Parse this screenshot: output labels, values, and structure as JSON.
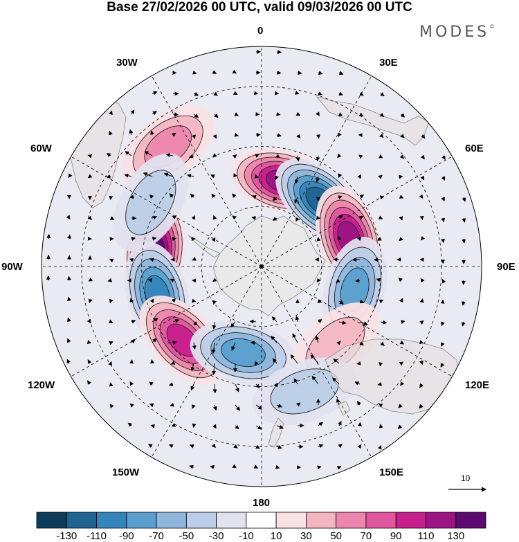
{
  "title": "Base 27/02/2026 00 UTC, valid 09/03/2026 00 UTC",
  "brand": "MODES",
  "brand_mark": "©",
  "lon_labels": {
    "l0": "0",
    "l30e": "30E",
    "l60e": "60E",
    "l90e": "90E",
    "l120e": "120E",
    "l150e": "150E",
    "l180": "180",
    "l150w": "150W",
    "l120w": "120W",
    "l90w": "90W",
    "l60w": "60W",
    "l30w": "30W"
  },
  "vector_scale": "10",
  "colorbar": {
    "labels": [
      "-130",
      "-110",
      "-90",
      "-70",
      "-50",
      "-30",
      "-10",
      "10",
      "30",
      "50",
      "70",
      "90",
      "110",
      "130"
    ],
    "colors": [
      "#0d3c5c",
      "#1f6391",
      "#3585bd",
      "#5a9fcd",
      "#8fb7dc",
      "#bccde7",
      "#e2e2ef",
      "#ffffff",
      "#fae1e4",
      "#f4b5c3",
      "#ec86ac",
      "#e0559e",
      "#c71f8c",
      "#9c1483",
      "#5c0a6f"
    ]
  },
  "anomalies": [
    {
      "sign": "pos",
      "level": 6,
      "lon": -82,
      "colat": 27
    },
    {
      "sign": "neg",
      "level": 4,
      "lon": -105,
      "colat": 27
    },
    {
      "sign": "pos",
      "level": 4,
      "lon": -133,
      "colat": 27
    },
    {
      "sign": "neg",
      "level": 3,
      "lon": -168,
      "colat": 22
    },
    {
      "sign": "pos",
      "level": 5,
      "lon": 14,
      "colat": 22
    },
    {
      "sign": "neg",
      "level": 5,
      "lon": 42,
      "colat": 22
    },
    {
      "sign": "pos",
      "level": 5,
      "lon": 72,
      "colat": 23
    },
    {
      "sign": "neg",
      "level": 3,
      "lon": 104,
      "colat": 24
    },
    {
      "sign": "pos",
      "level": 1,
      "lon": 137,
      "colat": 27
    },
    {
      "sign": "neg",
      "level": 1,
      "lon": 161,
      "colat": 33
    },
    {
      "sign": "pos",
      "level": 2,
      "lon": -38,
      "colat": 38
    },
    {
      "sign": "neg",
      "level": 1,
      "lon": -60,
      "colat": 32
    }
  ]
}
